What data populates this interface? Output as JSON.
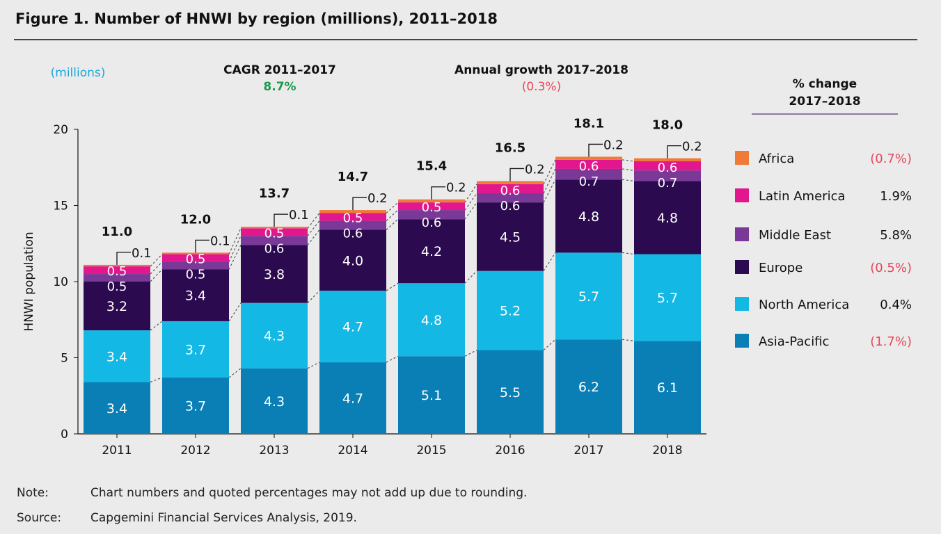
{
  "title": "Figure 1. Number of HNWI by region (millions), 2011–2018",
  "units_label": "(millions)",
  "cagr": {
    "label": "CAGR 2011–2017",
    "value": "8.7%"
  },
  "annual_growth": {
    "label": "Annual growth 2017–2018",
    "value": "(0.3%)"
  },
  "legend_header": [
    "% change",
    "2017–2018"
  ],
  "note": {
    "label": "Note:",
    "text": "Chart numbers and quoted percentages may not add up due to rounding."
  },
  "source": {
    "label": "Source:",
    "text": "Capgemini Financial Services Analysis, 2019."
  },
  "colors": {
    "positive": "#1a9a4a",
    "negative": "#e8465a",
    "units": "#1aa6d8"
  },
  "chart_data": {
    "type": "bar",
    "stacked": true,
    "categories": [
      "2011",
      "2012",
      "2013",
      "2014",
      "2015",
      "2016",
      "2017",
      "2018"
    ],
    "ylabel": "HNWI population",
    "ylim": [
      0,
      20
    ],
    "yticks": [
      0,
      5,
      10,
      15,
      20
    ],
    "totals": [
      "11.0",
      "12.0",
      "13.7",
      "14.7",
      "15.4",
      "16.5",
      "18.1",
      "18.0"
    ],
    "series": [
      {
        "name": "Asia-Pacific",
        "color": "#0a7fb6",
        "values": [
          3.4,
          3.7,
          4.3,
          4.7,
          5.1,
          5.5,
          6.2,
          6.1
        ],
        "change": "(1.7%)",
        "negative": true
      },
      {
        "name": "North America",
        "color": "#14b8e4",
        "values": [
          3.4,
          3.7,
          4.3,
          4.7,
          4.8,
          5.2,
          5.7,
          5.7
        ],
        "change": "0.4%",
        "negative": false
      },
      {
        "name": "Europe",
        "color": "#2b0a4f",
        "values": [
          3.2,
          3.4,
          3.8,
          4.0,
          4.2,
          4.5,
          4.8,
          4.8
        ],
        "change": "(0.5%)",
        "negative": true
      },
      {
        "name": "Middle East",
        "color": "#7a3997",
        "values": [
          0.5,
          0.5,
          0.6,
          0.6,
          0.6,
          0.6,
          0.7,
          0.7
        ],
        "change": "5.8%",
        "negative": false
      },
      {
        "name": "Latin America",
        "color": "#e2178d",
        "values": [
          0.5,
          0.5,
          0.5,
          0.5,
          0.5,
          0.6,
          0.6,
          0.6
        ],
        "change": "1.9%",
        "negative": false
      },
      {
        "name": "Africa",
        "color": "#f07a38",
        "values": [
          0.1,
          0.1,
          0.1,
          0.2,
          0.2,
          0.2,
          0.2,
          0.2
        ],
        "change": "(0.7%)",
        "negative": true
      }
    ]
  }
}
